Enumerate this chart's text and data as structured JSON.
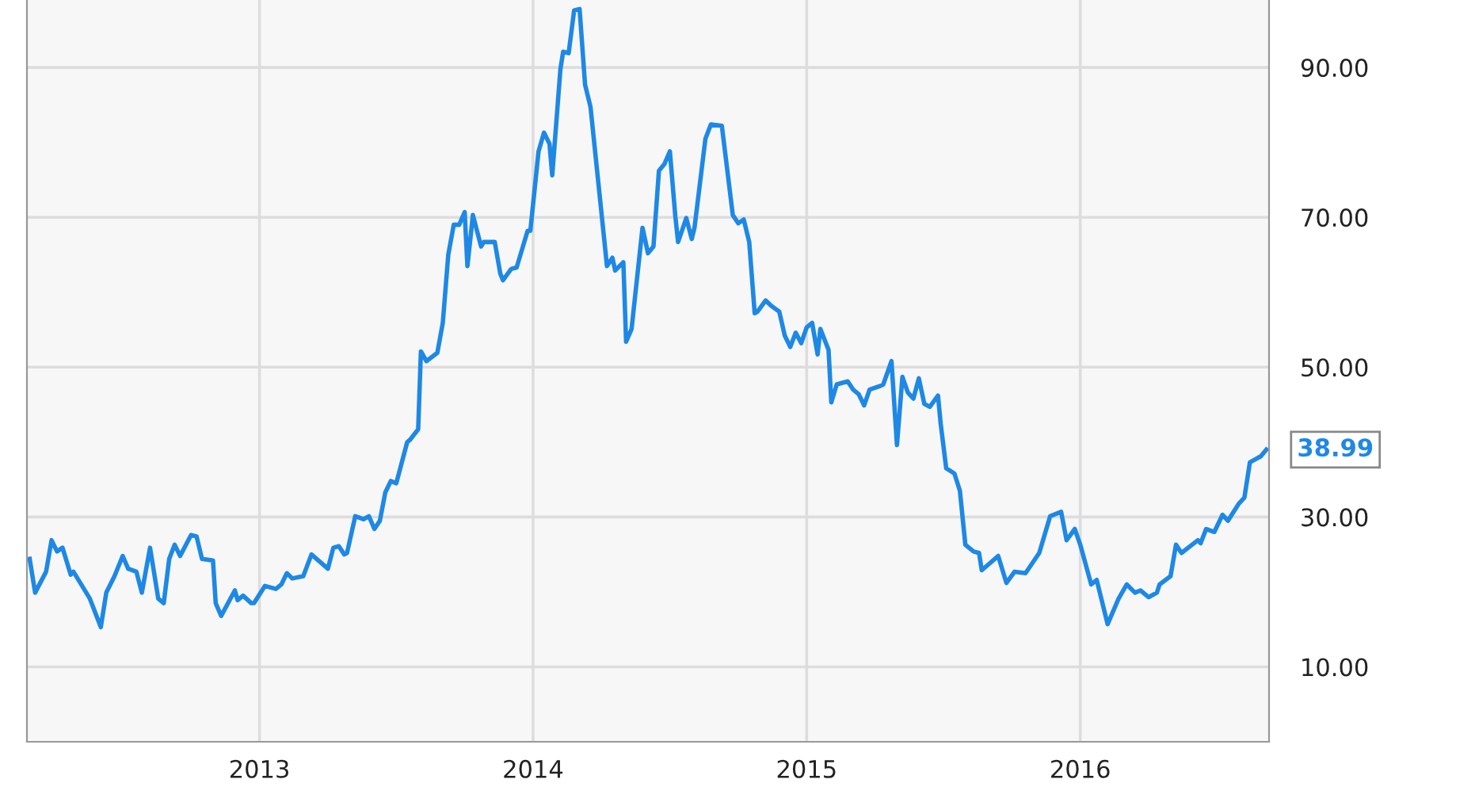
{
  "chart_data": {
    "type": "line",
    "x": [
      2012.16,
      2012.18,
      2012.22,
      2012.24,
      2012.26,
      2012.28,
      2012.31,
      2012.32,
      2012.38,
      2012.42,
      2012.44,
      2012.47,
      2012.5,
      2012.52,
      2012.55,
      2012.57,
      2012.6,
      2012.63,
      2012.65,
      2012.67,
      2012.69,
      2012.71,
      2012.75,
      2012.77,
      2012.79,
      2012.83,
      2012.84,
      2012.86,
      2012.91,
      2012.92,
      2012.94,
      2012.97,
      2012.98,
      2013.02,
      2013.06,
      2013.08,
      2013.1,
      2013.12,
      2013.16,
      2013.19,
      2013.25,
      2013.27,
      2013.29,
      2013.31,
      2013.32,
      2013.35,
      2013.38,
      2013.4,
      2013.42,
      2013.44,
      2013.46,
      2013.48,
      2013.5,
      2013.54,
      2013.55,
      2013.58,
      2013.59,
      2013.61,
      2013.65,
      2013.67,
      2013.69,
      2013.71,
      2013.73,
      2013.75,
      2013.76,
      2013.78,
      2013.81,
      2013.82,
      2013.86,
      2013.88,
      2013.89,
      2013.92,
      2013.94,
      2013.98,
      2013.99,
      2014.02,
      2014.04,
      2014.06,
      2014.07,
      2014.1,
      2014.11,
      2014.13,
      2014.15,
      2014.17,
      2014.19,
      2014.21,
      2014.27,
      2014.29,
      2014.3,
      2014.33,
      2014.34,
      2014.36,
      2014.4,
      2014.42,
      2014.44,
      2014.46,
      2014.48,
      2014.5,
      2014.52,
      2014.53,
      2014.56,
      2014.58,
      2014.59,
      2014.63,
      2014.65,
      2014.69,
      2014.73,
      2014.75,
      2014.77,
      2014.79,
      2014.81,
      2014.82,
      2014.85,
      2014.87,
      2014.9,
      2014.92,
      2014.94,
      2014.96,
      2014.98,
      2015.0,
      2015.02,
      2015.04,
      2015.05,
      2015.08,
      2015.09,
      2015.11,
      2015.15,
      2015.17,
      2015.19,
      2015.21,
      2015.23,
      2015.27,
      2015.28,
      2015.31,
      2015.33,
      2015.35,
      2015.37,
      2015.39,
      2015.41,
      2015.43,
      2015.45,
      2015.48,
      2015.49,
      2015.51,
      2015.54,
      2015.56,
      2015.58,
      2015.61,
      2015.63,
      2015.64,
      2015.7,
      2015.73,
      2015.76,
      2015.8,
      2015.85,
      2015.89,
      2015.93,
      2015.95,
      2015.98,
      2016.0,
      2016.04,
      2016.06,
      2016.1,
      2016.14,
      2016.17,
      2016.2,
      2016.22,
      2016.25,
      2016.28,
      2016.29,
      2016.33,
      2016.35,
      2016.37,
      2016.43,
      2016.44,
      2016.46,
      2016.49,
      2016.52,
      2016.54,
      2016.58,
      2016.6,
      2016.62,
      2016.66,
      2016.68
    ],
    "series": [
      {
        "color": "#1e88e5",
        "values": [
          24.4,
          19.9,
          22.7,
          26.9,
          25.4,
          25.9,
          22.3,
          22.7,
          19.1,
          15.3,
          19.9,
          22.1,
          24.8,
          23.1,
          22.7,
          19.9,
          25.9,
          19.1,
          18.5,
          24.4,
          26.3,
          24.8,
          27.6,
          27.4,
          24.4,
          24.2,
          18.5,
          16.8,
          20.2,
          18.9,
          19.5,
          18.5,
          18.5,
          20.8,
          20.4,
          21.0,
          22.5,
          21.8,
          22.1,
          25.0,
          23.1,
          25.9,
          26.1,
          25.0,
          25.2,
          30.1,
          29.7,
          30.1,
          28.4,
          29.5,
          33.3,
          34.8,
          34.5,
          40.0,
          40.3,
          41.7,
          52.1,
          50.8,
          51.9,
          55.9,
          65.0,
          69.0,
          69.0,
          70.7,
          63.5,
          70.3,
          66.1,
          66.7,
          66.7,
          62.5,
          61.6,
          63.1,
          63.3,
          68.2,
          68.2,
          78.8,
          81.3,
          79.8,
          75.6,
          89.8,
          92.1,
          91.9,
          97.6,
          97.8,
          87.7,
          84.7,
          63.5,
          64.6,
          62.9,
          64.0,
          53.4,
          55.1,
          68.6,
          65.2,
          66.1,
          76.2,
          77.1,
          78.8,
          70.1,
          66.7,
          69.9,
          67.1,
          68.6,
          80.5,
          82.4,
          82.2,
          70.3,
          69.2,
          69.7,
          66.7,
          57.2,
          57.4,
          58.9,
          58.2,
          57.4,
          54.2,
          52.7,
          54.6,
          53.2,
          55.3,
          55.9,
          51.7,
          55.1,
          52.3,
          45.3,
          47.7,
          48.1,
          47.0,
          46.4,
          44.9,
          47.0,
          47.5,
          47.7,
          50.8,
          39.6,
          48.7,
          46.6,
          45.8,
          48.5,
          45.1,
          44.7,
          46.2,
          42.4,
          36.5,
          35.8,
          33.5,
          26.3,
          25.4,
          25.2,
          22.9,
          24.8,
          21.2,
          22.7,
          22.5,
          25.2,
          30.1,
          30.7,
          26.9,
          28.4,
          26.3,
          21.0,
          21.6,
          15.7,
          19.1,
          21.0,
          19.9,
          20.2,
          19.3,
          19.9,
          21.0,
          22.1,
          26.3,
          25.2,
          26.9,
          26.5,
          28.4,
          28.0,
          30.3,
          29.5,
          31.8,
          32.6,
          37.3,
          38.1,
          38.99
        ]
      }
    ],
    "xlim": [
      2012.15,
      2016.69
    ],
    "xticks": [
      {
        "value": 2013,
        "label": "2013"
      },
      {
        "value": 2014,
        "label": "2014"
      },
      {
        "value": 2015,
        "label": "2015"
      },
      {
        "value": 2016,
        "label": "2016"
      }
    ],
    "ylim": [
      0,
      99
    ],
    "yticks": [
      {
        "value": 10,
        "label": "10.00"
      },
      {
        "value": 30,
        "label": "30.00"
      },
      {
        "value": 50,
        "label": "50.00"
      },
      {
        "value": 70,
        "label": "70.00"
      },
      {
        "value": 90,
        "label": "90.00"
      }
    ],
    "grid": true,
    "annotations": [
      {
        "text": "38.99",
        "x": 2016.68,
        "y": 38.99
      }
    ]
  }
}
